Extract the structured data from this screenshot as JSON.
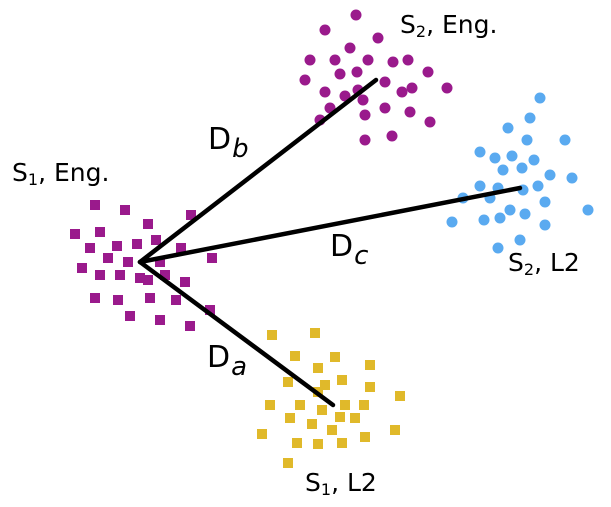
{
  "colors": {
    "s1_eng": "#9a1a8c",
    "s2_eng": "#9a1a8c",
    "s2_l2": "#5aaaf0",
    "s1_l2": "#e0b92a",
    "line": "#000000"
  },
  "clusters": {
    "s1_eng": {
      "main": "S",
      "sub": "1",
      "rest": ", Eng.",
      "marker": "square"
    },
    "s2_eng": {
      "main": "S",
      "sub": "2",
      "rest": ", Eng.",
      "marker": "circle"
    },
    "s2_l2": {
      "main": "S",
      "sub": "2",
      "rest": ", L2",
      "marker": "circle"
    },
    "s1_l2": {
      "main": "S",
      "sub": "1",
      "rest": ", L2",
      "marker": "square"
    }
  },
  "distances": {
    "da": {
      "main": "D",
      "sub": "a"
    },
    "db": {
      "main": "D",
      "sub": "b"
    },
    "dc": {
      "main": "D",
      "sub": "c"
    }
  }
}
